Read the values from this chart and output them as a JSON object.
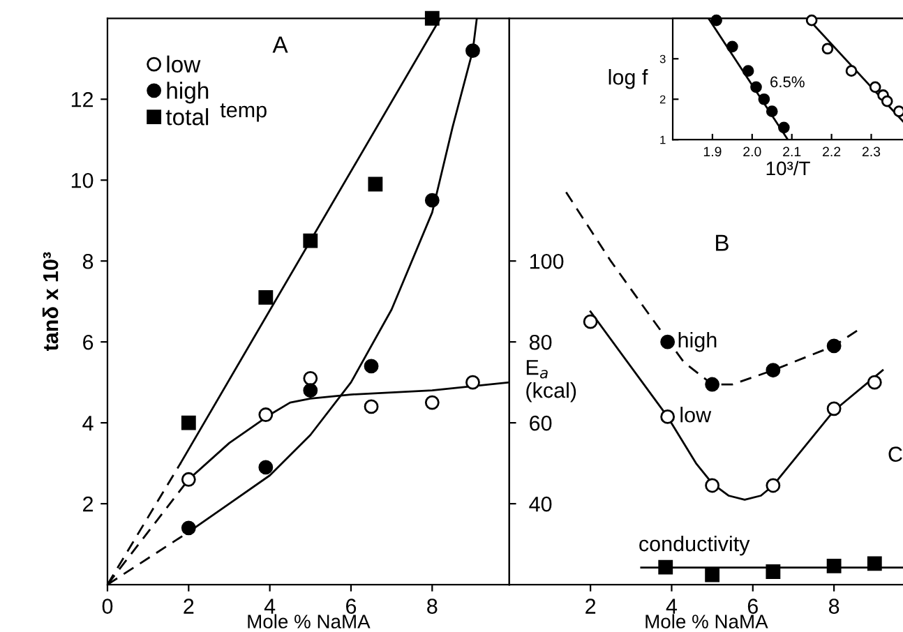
{
  "chart_data": [
    {
      "type": "scatter",
      "title": "A",
      "xlabel": "Mole % NaMA",
      "ylabel": "tanδ x 10³",
      "xlim": [
        0,
        9.9
      ],
      "ylim": [
        0,
        14
      ],
      "xticks": [
        0,
        2,
        4,
        6,
        8
      ],
      "yticks": [
        2,
        4,
        6,
        8,
        10,
        12
      ],
      "grid": false,
      "legend": "top left",
      "annotations": [
        "temp"
      ],
      "series": [
        {
          "name": "low",
          "marker": "circle",
          "color": "#ffffff",
          "x": [
            2,
            3.9,
            5,
            6.5,
            8,
            9
          ],
          "values": [
            2.6,
            4.2,
            5.1,
            4.4,
            4.5,
            5.0
          ]
        },
        {
          "name": "high",
          "marker": "circle",
          "color": "#000000",
          "x": [
            2,
            3.9,
            5,
            6.5,
            8,
            9
          ],
          "values": [
            1.4,
            2.9,
            4.8,
            5.4,
            9.5,
            13.2
          ]
        },
        {
          "name": "total",
          "marker": "square",
          "color": "#000000",
          "x": [
            2,
            3.9,
            5,
            6.6,
            8
          ],
          "values": [
            4.0,
            7.1,
            8.5,
            9.9,
            14.0
          ]
        },
        {
          "type": "line",
          "color": "#000000",
          "line_style": "dashed",
          "x": [
            0,
            1.8
          ],
          "values": [
            0,
            3.0
          ]
        },
        {
          "type": "line",
          "color": "#000000",
          "line_style": "solid",
          "x": [
            1.8,
            8.2
          ],
          "values": [
            3.0,
            14
          ]
        },
        {
          "type": "line",
          "color": "#000000",
          "line_style": "dashed",
          "x": [
            0,
            2
          ],
          "values": [
            0,
            2.6
          ]
        },
        {
          "type": "line",
          "color": "#000000",
          "line_style": "solid",
          "x": [
            2,
            3,
            4,
            4.5,
            5,
            6,
            8,
            9.9
          ],
          "values": [
            2.6,
            3.5,
            4.2,
            4.5,
            4.6,
            4.7,
            4.8,
            5.0
          ]
        },
        {
          "type": "line",
          "color": "#000000",
          "line_style": "dashed",
          "x": [
            0,
            2
          ],
          "values": [
            0,
            1.3
          ]
        },
        {
          "type": "line",
          "color": "#000000",
          "line_style": "solid",
          "x": [
            2,
            3,
            4,
            5,
            6,
            7,
            8,
            8.5,
            9,
            9.1
          ],
          "values": [
            1.3,
            2.0,
            2.7,
            3.7,
            5.0,
            6.8,
            9.2,
            11.3,
            13.2,
            14
          ]
        }
      ]
    },
    {
      "type": "scatter",
      "title": "B",
      "xlabel": "Mole % NaMA",
      "ylabel": "E$_{a}$ (kcal)",
      "xlim": [
        0,
        9.7
      ],
      "ylim": [
        20,
        160
      ],
      "xticks": [
        2,
        4,
        6,
        8
      ],
      "yticks": [
        40,
        60,
        80,
        100
      ],
      "grid": false,
      "annotations": [
        "C"
      ],
      "series": [
        {
          "name": "high",
          "marker": "circle",
          "color": "#000000",
          "x": [
            3.9,
            5,
            6.5,
            8
          ],
          "values": [
            80,
            69.5,
            73,
            79
          ]
        },
        {
          "name": "low",
          "marker": "circle",
          "color": "#ffffff",
          "x": [
            2,
            3.9,
            5,
            6.5,
            8,
            9
          ],
          "values": [
            85,
            61.5,
            44.5,
            44.5,
            63.5,
            70
          ]
        },
        {
          "name": "conductivity",
          "marker": "square",
          "color": "#000000",
          "x": [
            3.85,
            5,
            6.5,
            8,
            9
          ],
          "values": [
            24.3,
            22.4,
            23.2,
            24.6,
            25.2
          ]
        },
        {
          "type": "line",
          "color": "#000000",
          "line_style": "dashed",
          "x": [
            1.4,
            2.5,
            3.5,
            4.3,
            5,
            5.5,
            6.5,
            8,
            8.6
          ],
          "values": [
            117,
            100,
            86,
            75,
            69.5,
            69.5,
            73,
            79,
            83
          ]
        },
        {
          "type": "line",
          "color": "#000000",
          "line_style": "solid",
          "x": [
            2,
            3.9,
            4.6,
            5,
            5.4,
            5.8,
            6.2,
            6.5,
            8,
            9.2
          ],
          "values": [
            87.5,
            61.5,
            50,
            45,
            42,
            41,
            42,
            44.5,
            63,
            73
          ]
        },
        {
          "type": "line",
          "color": "#000000",
          "line_style": "solid",
          "x": [
            3.25,
            9.7
          ],
          "values": [
            24.2,
            24.2
          ]
        }
      ]
    },
    {
      "type": "scatter",
      "xlabel": "10³/T",
      "ylabel": "log f",
      "xlim": [
        1.8,
        2.38
      ],
      "ylim": [
        1,
        4
      ],
      "xticks": [
        1.9,
        {
          "value": 2.0,
          "label": "2.0"
        },
        2.1,
        2.2,
        2.3
      ],
      "yticks": [
        1,
        2,
        3
      ],
      "grid": false,
      "series": [
        {
          "name": "6.5%",
          "marker": "circle",
          "color": "#000000",
          "x": [
            1.91,
            1.95,
            1.99,
            2.01,
            2.03,
            2.05,
            2.08
          ],
          "values": [
            3.95,
            3.3,
            2.7,
            2.3,
            2.0,
            1.7,
            1.3
          ]
        },
        {
          "marker": "circle",
          "color": "#ffffff",
          "x": [
            2.15,
            2.19,
            2.25,
            2.31,
            2.33,
            2.34,
            2.37
          ],
          "values": [
            3.95,
            3.25,
            2.7,
            2.3,
            2.1,
            1.95,
            1.7
          ]
        },
        {
          "type": "line",
          "color": "#000000",
          "line_style": "solid",
          "x": [
            1.89,
            2.09
          ],
          "values": [
            4,
            1
          ]
        },
        {
          "type": "line",
          "color": "#000000",
          "line_style": "solid",
          "x": [
            2.14,
            2.38
          ],
          "values": [
            4,
            1.45
          ]
        }
      ]
    }
  ]
}
